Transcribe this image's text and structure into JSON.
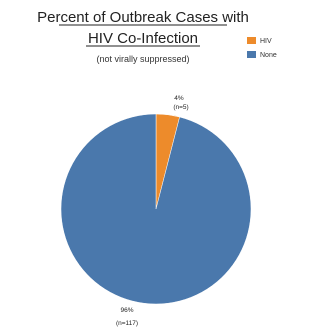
{
  "chart_data": {
    "type": "pie",
    "title_line1": "Percent of Outbreak Cases with",
    "title_line2": "HIV Co-Infection",
    "subtitle": "(not virally suppressed)",
    "series": [
      {
        "name": "HIV",
        "value": 4,
        "n": 5,
        "percent_label": "4%",
        "n_label": "(n=5)",
        "color": "#ed8b2b"
      },
      {
        "name": "None",
        "value": 96,
        "n": 117,
        "percent_label": "96%",
        "n_label": "(n=117)",
        "color": "#4a78ac"
      }
    ],
    "legend_position": "top-right"
  }
}
